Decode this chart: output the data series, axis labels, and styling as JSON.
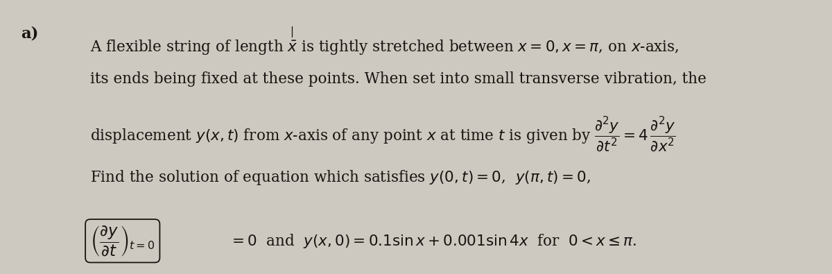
{
  "background_color": "#cdc9c0",
  "fig_width": 12.0,
  "fig_height": 3.95,
  "text_color": "#1a1210",
  "font_size": 15.5
}
